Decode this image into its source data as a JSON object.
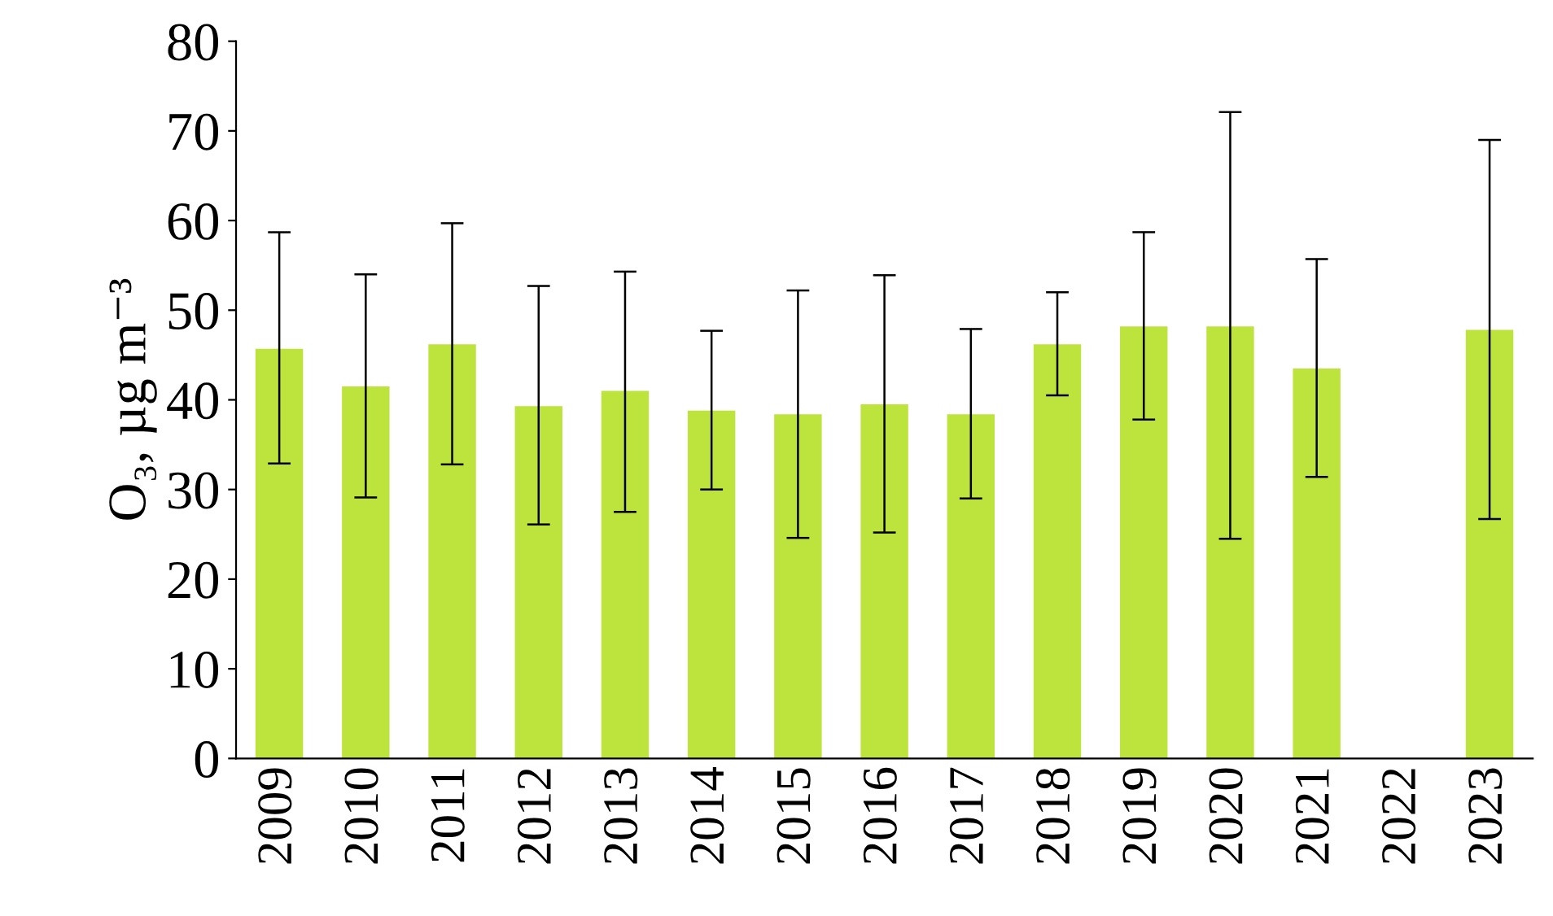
{
  "chart_data": {
    "type": "bar",
    "ylabel": "O₃, µg m⁻³",
    "categories": [
      "2009",
      "2010",
      "2011",
      "2012",
      "2013",
      "2014",
      "2015",
      "2016",
      "2017",
      "2018",
      "2019",
      "2020",
      "2021",
      "2022",
      "2023"
    ],
    "values": [
      45.7,
      41.5,
      46.2,
      39.3,
      41.0,
      38.8,
      38.4,
      39.5,
      38.4,
      46.2,
      48.2,
      48.2,
      43.5,
      null,
      47.8
    ],
    "errors": [
      [
        32.9,
        58.7
      ],
      [
        29.1,
        54.0
      ],
      [
        32.8,
        59.7
      ],
      [
        26.1,
        52.7
      ],
      [
        27.5,
        54.3
      ],
      [
        30.0,
        47.7
      ],
      [
        24.6,
        52.2
      ],
      [
        25.2,
        53.9
      ],
      [
        29.0,
        47.9
      ],
      [
        40.5,
        52.0
      ],
      [
        37.8,
        58.7
      ],
      [
        24.5,
        72.1
      ],
      [
        31.4,
        55.7
      ],
      null,
      [
        26.7,
        69.0
      ]
    ],
    "color": "#bce43c",
    "ylim": [
      0,
      80
    ],
    "yticks": [
      0,
      10,
      20,
      30,
      40,
      50,
      60,
      70,
      80
    ],
    "grid": false
  }
}
